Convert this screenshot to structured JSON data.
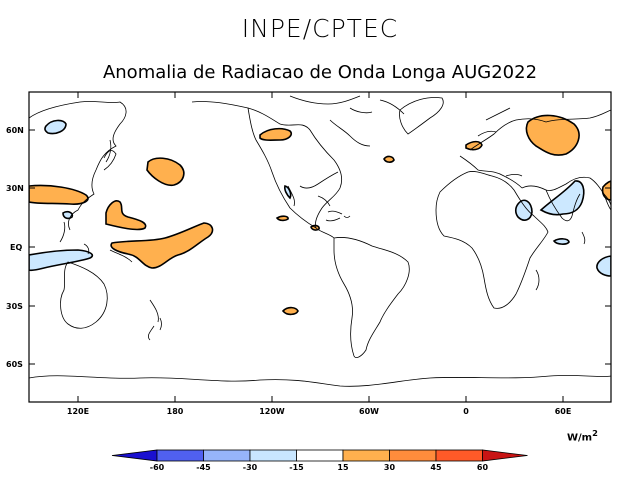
{
  "header": {
    "agency": "INPE/CPTEC",
    "title": "Anomalia de Radiacao de Onda Longa AUG2022"
  },
  "map": {
    "projection": "cylindrical-equidistant",
    "lon_range": "100E to 80E (centered at 90W)",
    "lat_range": "80S to 80N",
    "lat_labels": [
      "60N",
      "30N",
      "EQ",
      "30S",
      "60S"
    ],
    "lon_labels": [
      "120E",
      "180",
      "120W",
      "60W",
      "0",
      "60E"
    ],
    "positive_anomaly_color": "#ffb04e",
    "negative_anomaly_color": "#cce8ff"
  },
  "legend": {
    "units": "W/m",
    "units_sup": "2",
    "ticks": [
      "-60",
      "-45",
      "-30",
      "-15",
      "15",
      "30",
      "45",
      "60"
    ],
    "colors": [
      "#1a10d0",
      "#5060f0",
      "#96b4fa",
      "#c8e6ff",
      "#ffffff",
      "#ffb04e",
      "#ff8c3c",
      "#ff5a28",
      "#c81414"
    ]
  }
}
